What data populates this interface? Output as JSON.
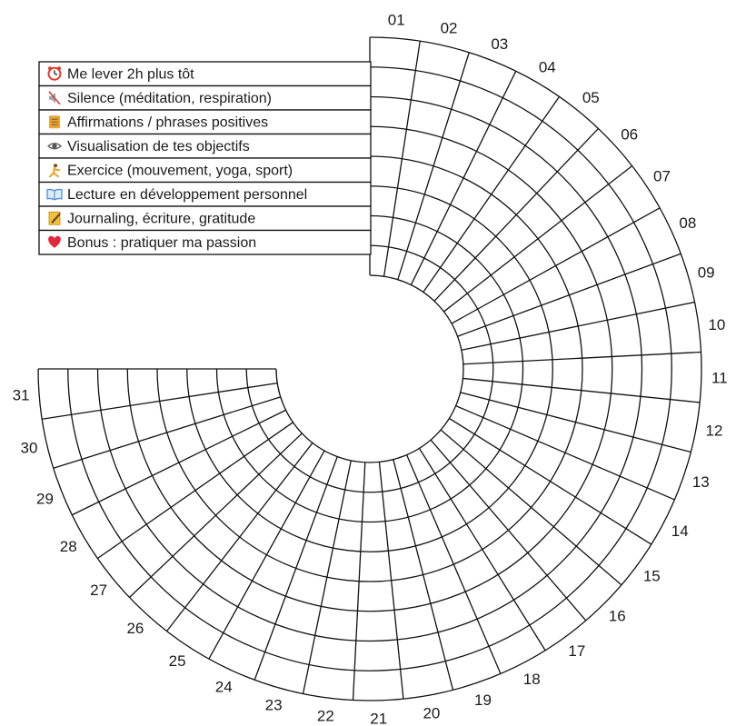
{
  "days": [
    "01",
    "02",
    "03",
    "04",
    "05",
    "06",
    "07",
    "08",
    "09",
    "10",
    "11",
    "12",
    "13",
    "14",
    "15",
    "16",
    "17",
    "18",
    "19",
    "20",
    "21",
    "22",
    "23",
    "24",
    "25",
    "26",
    "27",
    "28",
    "29",
    "30",
    "31"
  ],
  "habits": [
    {
      "icon": "alarm-clock-icon",
      "label": "Me lever 2h plus tôt",
      "color": "#e0392b"
    },
    {
      "icon": "muted-speaker-icon",
      "label": "Silence (méditation, respiration)",
      "color": "#9aa3ad"
    },
    {
      "icon": "scroll-icon",
      "label": "Affirmations / phrases positives",
      "color": "#e7a23a"
    },
    {
      "icon": "eye-icon",
      "label": "Visualisation de tes objectifs",
      "color": "#555555"
    },
    {
      "icon": "runner-icon",
      "label": "Exercice (mouvement, yoga, sport)",
      "color": "#e8a028"
    },
    {
      "icon": "open-book-icon",
      "label": "Lecture en développement personnel",
      "color": "#4f8fd1"
    },
    {
      "icon": "memo-icon",
      "label": "Journaling, écriture, gratitude",
      "color": "#f0c23b"
    },
    {
      "icon": "heart-icon",
      "label": "Bonus : pratiquer ma passion",
      "color": "#e3263a"
    }
  ]
}
